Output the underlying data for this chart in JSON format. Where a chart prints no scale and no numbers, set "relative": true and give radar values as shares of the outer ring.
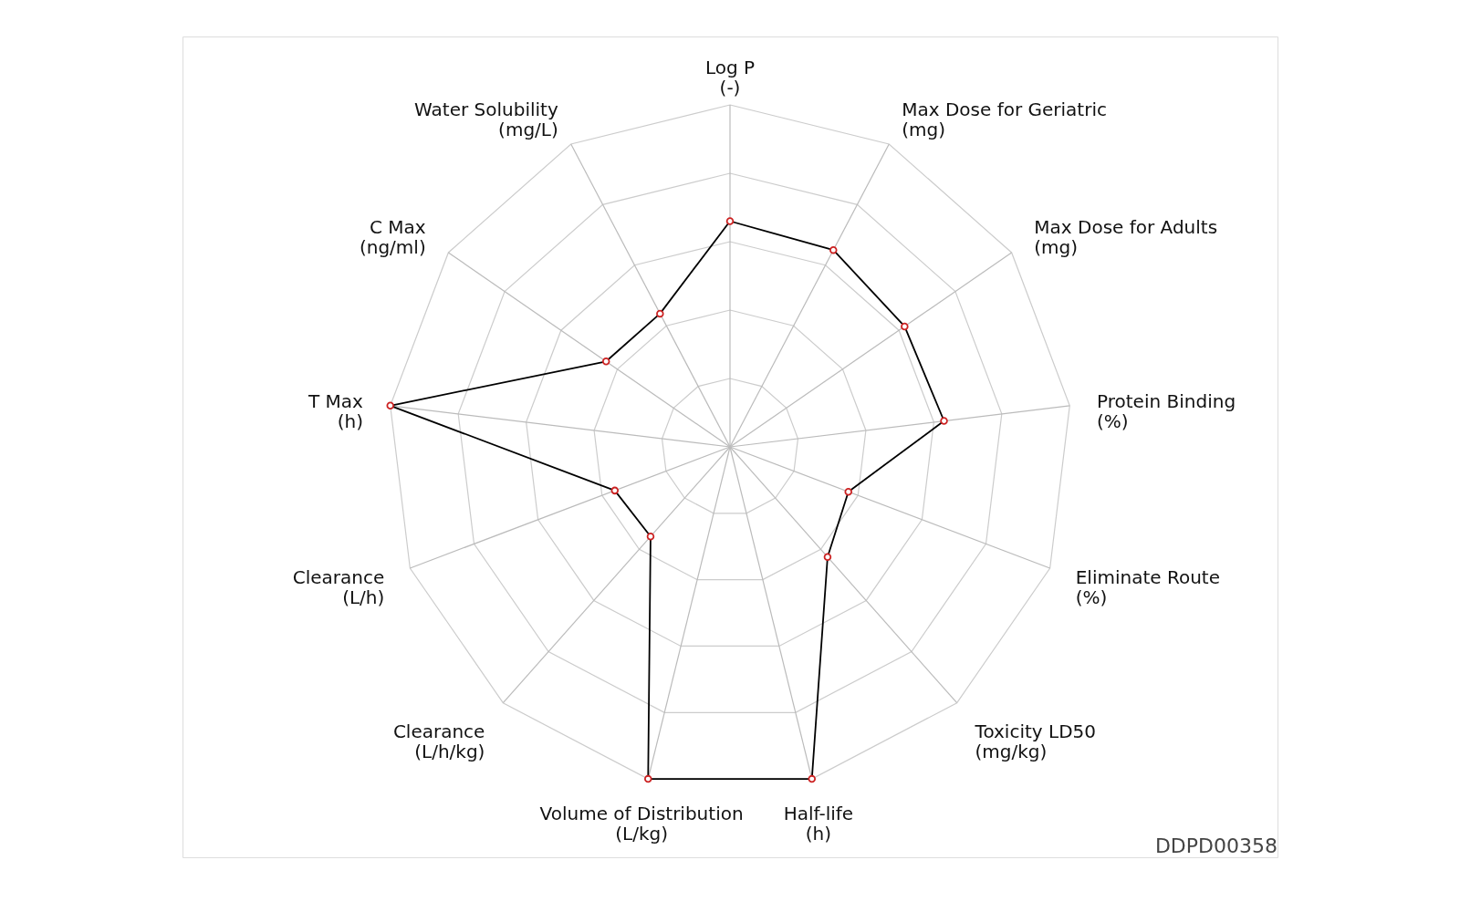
{
  "chart_data": {
    "type": "radar",
    "relative": true,
    "grid": true,
    "marker": "circle",
    "legend": false,
    "categories": [
      "Log P\n(-)",
      "Max Dose for Geriatric\n(mg)",
      "Max Dose for Adults\n(mg)",
      "Protein Binding\n(%)",
      "Eliminate Route\n(%)",
      "Toxicity LD50\n(mg/kg)",
      "Half-life\n(h)",
      "Volume of Distribution\n(L/kg)",
      "Clearance\n(L/h/kg)",
      "Clearance\n(L/h)",
      "T Max\n(h)",
      "C Max\n(ng/ml)",
      "Water Solubility\n(mg/L)"
    ],
    "series": [
      {
        "color": "#000000",
        "values": [
          0.66,
          0.65,
          0.62,
          0.63,
          0.37,
          0.43,
          1.0,
          1.0,
          0.35,
          0.36,
          1.0,
          0.44,
          0.44
        ]
      }
    ],
    "annotations": [
      "DDPD00358"
    ]
  }
}
